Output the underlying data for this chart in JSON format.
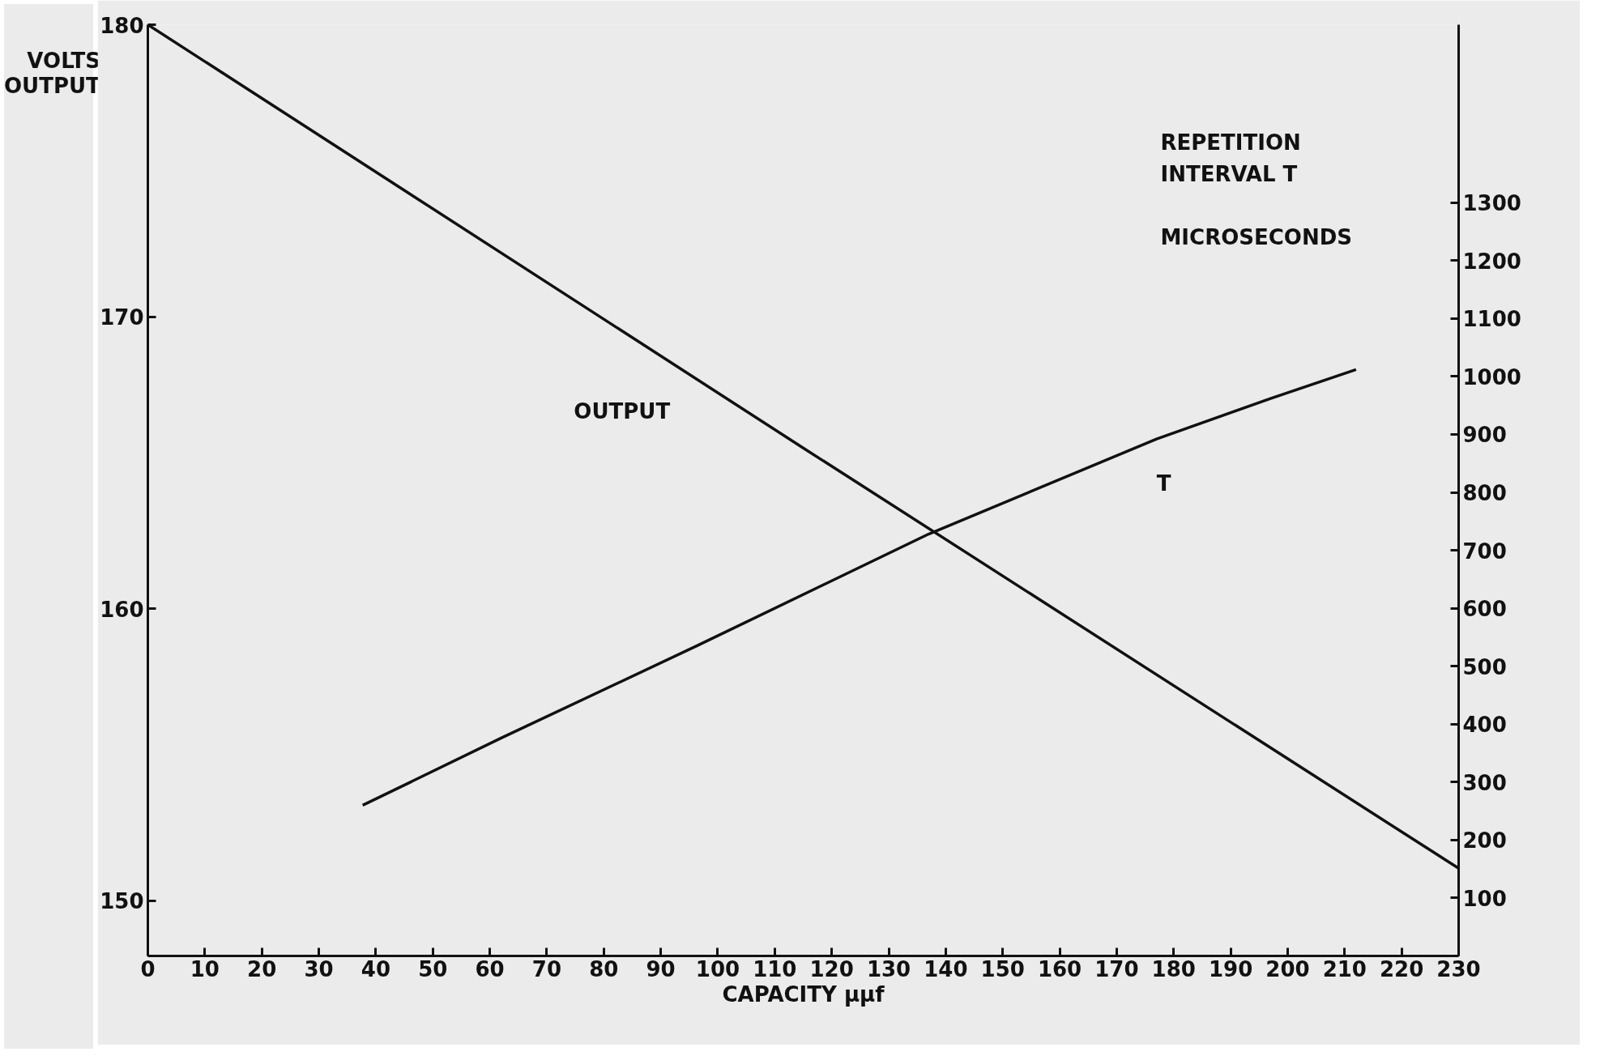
{
  "chart_data": {
    "type": "line",
    "xlabel": "CAPACITY μμf",
    "ylabel": "VOLTS\nOUTPUT",
    "y2label": "REPETITION\nINTERVAL T\n\nMICROSECONDS",
    "xlim": [
      0,
      230
    ],
    "xticks": [
      0,
      10,
      20,
      30,
      40,
      50,
      60,
      70,
      80,
      90,
      100,
      110,
      120,
      130,
      140,
      150,
      160,
      170,
      180,
      190,
      200,
      210,
      220,
      230
    ],
    "ylim": [
      148.1,
      180
    ],
    "yticks": [
      150,
      160,
      170,
      180
    ],
    "y2lim": [
      0,
      1607
    ],
    "y2ticks": [
      100,
      200,
      300,
      400,
      500,
      600,
      700,
      800,
      900,
      1000,
      1100,
      1200,
      1300
    ],
    "grid": false,
    "marker": "none",
    "line_style": "solid",
    "series": [
      {
        "name": "OUTPUT",
        "color": "#111111",
        "x": [
          0,
          115,
          230
        ],
        "values": [
          180,
          165.5,
          151.1
        ]
      },
      {
        "name": "T",
        "color": "#111111",
        "axis": "y2",
        "x": [
          37.7,
          62,
          96.3,
          137,
          177,
          197,
          212
        ],
        "values": [
          260,
          376,
          535,
          728,
          892,
          962,
          1012
        ]
      }
    ]
  }
}
